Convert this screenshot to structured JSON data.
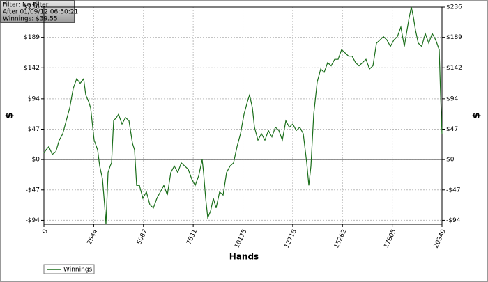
{
  "chart_data": {
    "type": "line",
    "annotations": [
      "Filter: No Filter",
      "After 01/09/12 06:50:21",
      "Winnings: $39.55"
    ],
    "xlabel": "Hands",
    "ylabel": "$",
    "y2label": "$",
    "xlim": [
      0,
      20349
    ],
    "xticks": [
      0,
      2544,
      5087,
      7631,
      10175,
      12718,
      15262,
      17805,
      20349
    ],
    "ylim": [
      -100,
      236
    ],
    "yticks": [
      {
        "value": -94,
        "label": "-$94"
      },
      {
        "value": -47,
        "label": "-$47"
      },
      {
        "value": 0,
        "label": "$0"
      },
      {
        "value": 47,
        "label": "$47"
      },
      {
        "value": 94,
        "label": "$94"
      },
      {
        "value": 142,
        "label": "$142"
      },
      {
        "value": 189,
        "label": "$189"
      },
      {
        "value": 236,
        "label": "$236"
      }
    ],
    "y2lim": [
      -100,
      236
    ],
    "y2ticks": [
      {
        "value": -94,
        "label": "-$94"
      },
      {
        "value": -47,
        "label": "-$47"
      },
      {
        "value": 0,
        "label": "$0"
      },
      {
        "value": 47,
        "label": "$47"
      },
      {
        "value": 94,
        "label": "$94"
      },
      {
        "value": 142,
        "label": "$142"
      },
      {
        "value": 189,
        "label": "$189"
      },
      {
        "value": 236,
        "label": "$236"
      }
    ],
    "grid": true,
    "legend": "bottom-left",
    "x": [
      0,
      107,
      249,
      428,
      606,
      784,
      962,
      1140,
      1319,
      1497,
      1675,
      1853,
      2031,
      2138,
      2281,
      2387,
      2566,
      2744,
      2851,
      2993,
      3100,
      3171,
      3278,
      3385,
      3456,
      3563,
      3706,
      3813,
      3991,
      4169,
      4347,
      4526,
      4633,
      4740,
      4882,
      5060,
      5239,
      5417,
      5595,
      5773,
      5951,
      6130,
      6308,
      6486,
      6664,
      6842,
      7020,
      7199,
      7377,
      7555,
      7733,
      7911,
      8089,
      8160,
      8267,
      8374,
      8517,
      8660,
      8802,
      8980,
      9159,
      9337,
      9515,
      9693,
      9871,
      10049,
      10228,
      10406,
      10513,
      10655,
      10762,
      10940,
      11119,
      11297,
      11475,
      11653,
      11832,
      12010,
      12188,
      12366,
      12544,
      12723,
      12901,
      13079,
      13257,
      13435,
      13542,
      13649,
      13792,
      13970,
      14148,
      14326,
      14504,
      14682,
      14861,
      15039,
      15217,
      15395,
      15573,
      15751,
      15930,
      16108,
      16286,
      16464,
      16643,
      16821,
      16999,
      17177,
      17355,
      17533,
      17711,
      17890,
      18068,
      18246,
      18424,
      18531,
      18674,
      18781,
      18888,
      18995,
      19137,
      19315,
      19494,
      19672,
      19850,
      20028,
      20206,
      20277,
      20349
    ],
    "series": [
      {
        "name": "Winnings",
        "color": "#1a6e1a",
        "values": [
          10,
          15,
          20,
          8,
          12,
          30,
          40,
          60,
          80,
          110,
          125,
          118,
          125,
          100,
          90,
          80,
          30,
          15,
          -10,
          -30,
          -70,
          -100,
          -20,
          -10,
          -5,
          60,
          65,
          70,
          55,
          65,
          60,
          25,
          15,
          -40,
          -40,
          -60,
          -50,
          -70,
          -75,
          -60,
          -50,
          -40,
          -55,
          -20,
          -10,
          -20,
          -5,
          -10,
          -15,
          -30,
          -40,
          -25,
          0,
          -20,
          -60,
          -90,
          -80,
          -60,
          -75,
          -50,
          -55,
          -20,
          -10,
          -5,
          20,
          40,
          70,
          90,
          100,
          80,
          50,
          30,
          40,
          30,
          45,
          35,
          50,
          45,
          30,
          60,
          50,
          55,
          45,
          50,
          40,
          -5,
          -40,
          -10,
          70,
          120,
          140,
          135,
          150,
          145,
          155,
          155,
          170,
          165,
          160,
          160,
          150,
          145,
          150,
          155,
          140,
          145,
          180,
          185,
          190,
          185,
          175,
          185,
          190,
          205,
          175,
          195,
          220,
          236,
          220,
          200,
          180,
          175,
          195,
          180,
          195,
          185,
          170,
          100,
          39.55
        ]
      }
    ]
  }
}
